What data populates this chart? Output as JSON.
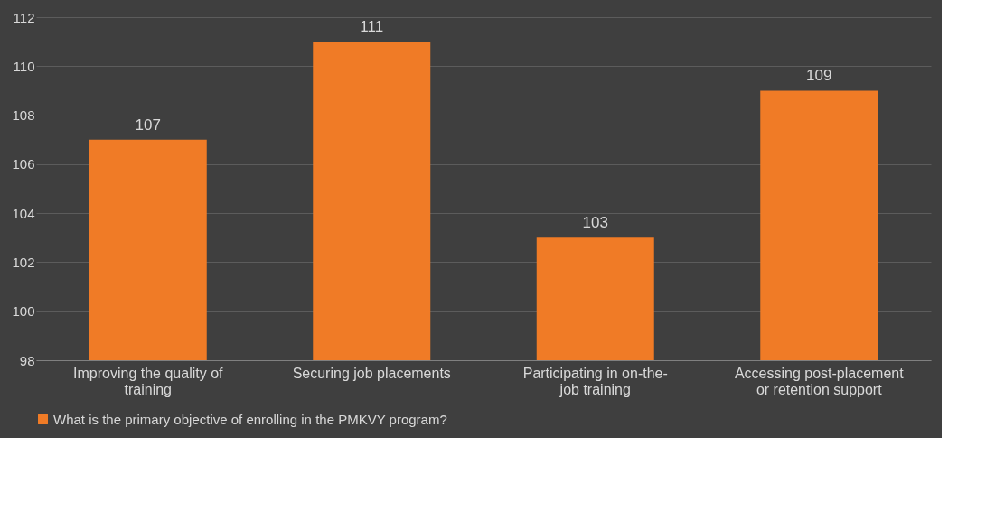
{
  "chart_data": {
    "type": "bar",
    "categories": [
      "Improving the quality of training",
      "Securing job placements",
      "Participating in on-the-job training",
      "Accessing post-placement or retention support"
    ],
    "series": [
      {
        "name": "What is the primary objective of enrolling in the PMKVY program?",
        "color": "#f07b26",
        "values": [
          107,
          111,
          103,
          109
        ]
      }
    ],
    "ylim": [
      98,
      112
    ],
    "yticks": [
      98,
      100,
      102,
      104,
      106,
      108,
      110,
      112
    ],
    "grid": "y",
    "legend": "bottom",
    "data_labels": true
  }
}
